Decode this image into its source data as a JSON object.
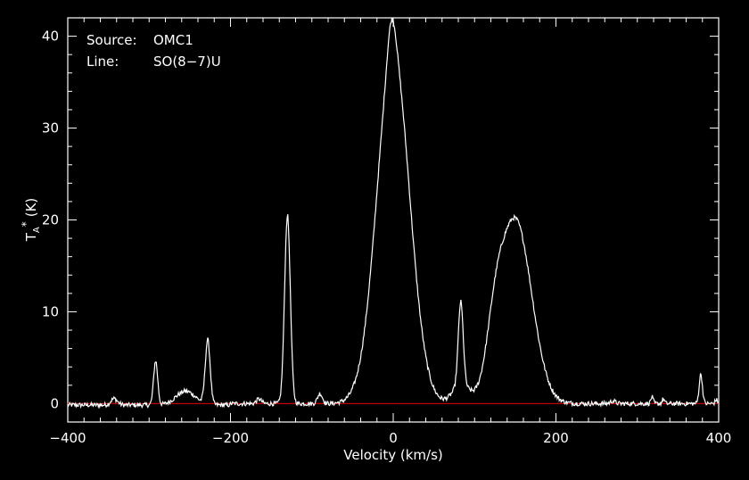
{
  "chart_data": {
    "type": "line",
    "title": "",
    "xlabel": "Velocity (km/s)",
    "ylabel": {
      "base": "T",
      "sub": "A",
      "sup": "*",
      "unit": "(K)"
    },
    "xlim": [
      -400,
      400
    ],
    "ylim": [
      -2,
      42
    ],
    "x_ticks": [
      -400,
      -200,
      0,
      200,
      400
    ],
    "x_tick_labels": [
      "−400",
      "−200",
      "0",
      "200",
      "400"
    ],
    "y_ticks": [
      0,
      10,
      20,
      30,
      40
    ],
    "y_tick_labels": [
      "0",
      "10",
      "20",
      "30",
      "40"
    ],
    "grid": false,
    "legend": "none",
    "annotations": [
      {
        "key": "Source:",
        "value": "OMC1"
      },
      {
        "key": "Line:",
        "value": "SO(8−7)U"
      }
    ],
    "baseline": {
      "y": 0,
      "color": "#c00000"
    },
    "series": [
      {
        "color": "#ffffff",
        "peaks": [
          {
            "center": 0,
            "amplitude": 38.0,
            "width": 20
          },
          {
            "center": -2,
            "amplitude": 4.0,
            "width": 5
          },
          {
            "center": 150,
            "amplitude": 20.0,
            "width": 20
          },
          {
            "center": 125,
            "amplitude": 4.5,
            "width": 10
          },
          {
            "center": 83,
            "amplitude": 9.0,
            "width": 3
          },
          {
            "center": 83,
            "amplitude": 2.0,
            "width": 10
          },
          {
            "center": -130,
            "amplitude": 20.5,
            "width": 3.5
          },
          {
            "center": -228,
            "amplitude": 7.0,
            "width": 3
          },
          {
            "center": -292,
            "amplitude": 4.8,
            "width": 2.5
          },
          {
            "center": -255,
            "amplitude": 1.5,
            "width": 12
          },
          {
            "center": -343,
            "amplitude": 0.7,
            "width": 4
          },
          {
            "center": -90,
            "amplitude": 1.1,
            "width": 3
          },
          {
            "center": -165,
            "amplitude": 0.5,
            "width": 3
          },
          {
            "center": 378,
            "amplitude": 3.2,
            "width": 2
          },
          {
            "center": 318,
            "amplitude": 0.7,
            "width": 1.5
          },
          {
            "center": 332,
            "amplitude": 0.5,
            "width": 1.5
          },
          {
            "center": 397,
            "amplitude": 0.4,
            "width": 1.5
          },
          {
            "center": 270,
            "amplitude": 0.3,
            "width": 3
          }
        ],
        "noise": 0.25
      }
    ]
  },
  "colors": {
    "background": "#000000",
    "axes": "#ffffff",
    "trace": "#ffffff",
    "baseline": "#c00000"
  }
}
